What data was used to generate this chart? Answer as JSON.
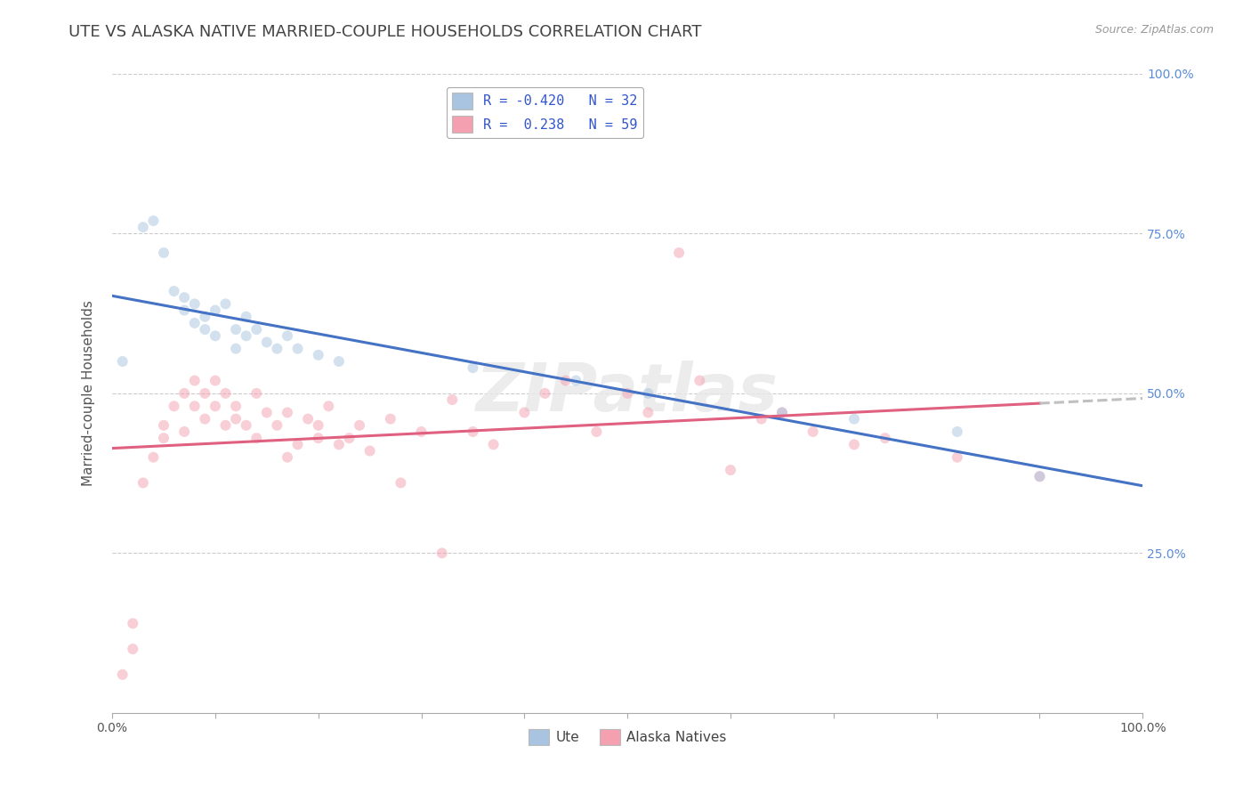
{
  "title": "UTE VS ALASKA NATIVE MARRIED-COUPLE HOUSEHOLDS CORRELATION CHART",
  "source": "Source: ZipAtlas.com",
  "ylabel": "Married-couple Households",
  "xlim": [
    0.0,
    1.0
  ],
  "ylim": [
    0.0,
    1.0
  ],
  "ute_color": "#a8c4e0",
  "alaska_color": "#f4a0b0",
  "ute_line_color": "#4472c4",
  "alaska_line_color": "#e06080",
  "alaska_dash_color": "#c0c0c0",
  "watermark": "ZIPatlas",
  "legend_r_ute": "R = -0.420",
  "legend_n_ute": "N = 32",
  "legend_r_alaska": "R =  0.238",
  "legend_n_alaska": "N = 59",
  "ute_scatter_x": [
    0.01,
    0.03,
    0.04,
    0.05,
    0.06,
    0.07,
    0.07,
    0.08,
    0.08,
    0.09,
    0.09,
    0.1,
    0.1,
    0.11,
    0.12,
    0.12,
    0.13,
    0.13,
    0.14,
    0.15,
    0.16,
    0.17,
    0.18,
    0.2,
    0.22,
    0.35,
    0.45,
    0.52,
    0.65,
    0.72,
    0.82,
    0.9
  ],
  "ute_scatter_y": [
    0.55,
    0.76,
    0.77,
    0.72,
    0.66,
    0.65,
    0.63,
    0.64,
    0.61,
    0.62,
    0.6,
    0.59,
    0.63,
    0.64,
    0.57,
    0.6,
    0.62,
    0.59,
    0.6,
    0.58,
    0.57,
    0.59,
    0.57,
    0.56,
    0.55,
    0.54,
    0.52,
    0.5,
    0.47,
    0.46,
    0.44,
    0.37
  ],
  "alaska_scatter_x": [
    0.01,
    0.02,
    0.02,
    0.03,
    0.04,
    0.05,
    0.05,
    0.06,
    0.07,
    0.07,
    0.08,
    0.08,
    0.09,
    0.09,
    0.1,
    0.1,
    0.11,
    0.11,
    0.12,
    0.12,
    0.13,
    0.14,
    0.14,
    0.15,
    0.16,
    0.17,
    0.17,
    0.18,
    0.19,
    0.2,
    0.2,
    0.21,
    0.22,
    0.23,
    0.24,
    0.25,
    0.27,
    0.28,
    0.3,
    0.32,
    0.33,
    0.35,
    0.37,
    0.4,
    0.42,
    0.44,
    0.47,
    0.5,
    0.52,
    0.55,
    0.57,
    0.6,
    0.63,
    0.65,
    0.68,
    0.72,
    0.75,
    0.82,
    0.9
  ],
  "alaska_scatter_y": [
    0.06,
    0.1,
    0.14,
    0.36,
    0.4,
    0.43,
    0.45,
    0.48,
    0.44,
    0.5,
    0.48,
    0.52,
    0.46,
    0.5,
    0.48,
    0.52,
    0.45,
    0.5,
    0.46,
    0.48,
    0.45,
    0.43,
    0.5,
    0.47,
    0.45,
    0.4,
    0.47,
    0.42,
    0.46,
    0.43,
    0.45,
    0.48,
    0.42,
    0.43,
    0.45,
    0.41,
    0.46,
    0.36,
    0.44,
    0.25,
    0.49,
    0.44,
    0.42,
    0.47,
    0.5,
    0.52,
    0.44,
    0.5,
    0.47,
    0.72,
    0.52,
    0.38,
    0.46,
    0.47,
    0.44,
    0.42,
    0.43,
    0.4,
    0.37
  ],
  "background_color": "#ffffff",
  "grid_color": "#cccccc",
  "title_fontsize": 13,
  "label_fontsize": 11,
  "tick_fontsize": 10,
  "scatter_size": 75,
  "scatter_alpha": 0.5,
  "line_width": 2.2
}
